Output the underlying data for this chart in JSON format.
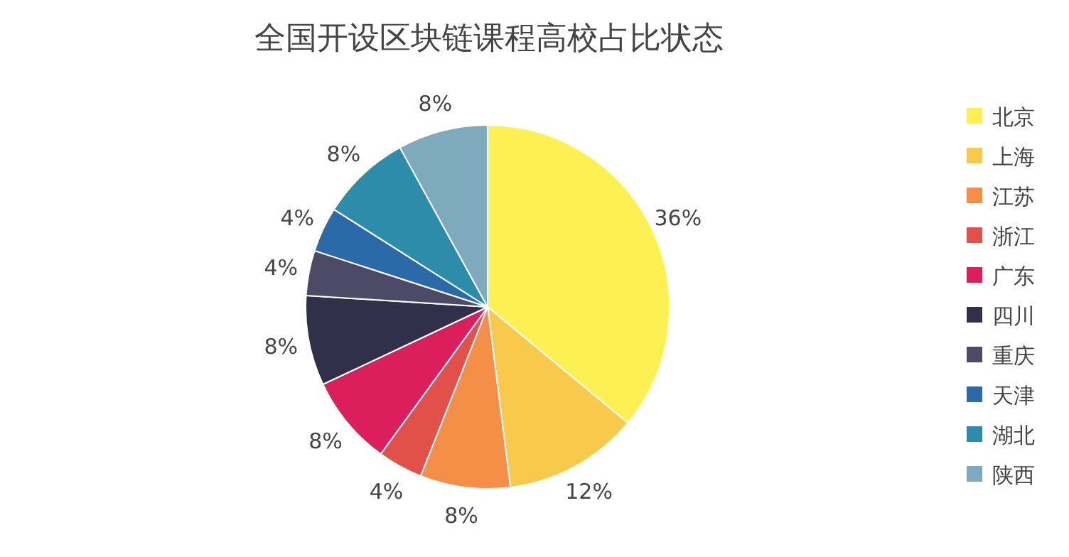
{
  "chart_data": {
    "type": "pie",
    "title": "全国开设区块链课程高校占比状态",
    "categories": [
      "北京",
      "上海",
      "江苏",
      "浙江",
      "广东",
      "四川",
      "重庆",
      "天津",
      "湖北",
      "陕西"
    ],
    "values": [
      36,
      12,
      8,
      4,
      8,
      8,
      4,
      4,
      8,
      8
    ],
    "colors": [
      "#fdf052",
      "#f8c94a",
      "#f58f47",
      "#e2504a",
      "#dc1e5c",
      "#31304a",
      "#4d4a68",
      "#2a6aa8",
      "#2d8caa",
      "#7eaabe"
    ],
    "value_labels": [
      "36%",
      "12%",
      "8%",
      "4%",
      "8%",
      "8%",
      "4%",
      "4%",
      "8%",
      "8%"
    ],
    "legend": "right"
  }
}
